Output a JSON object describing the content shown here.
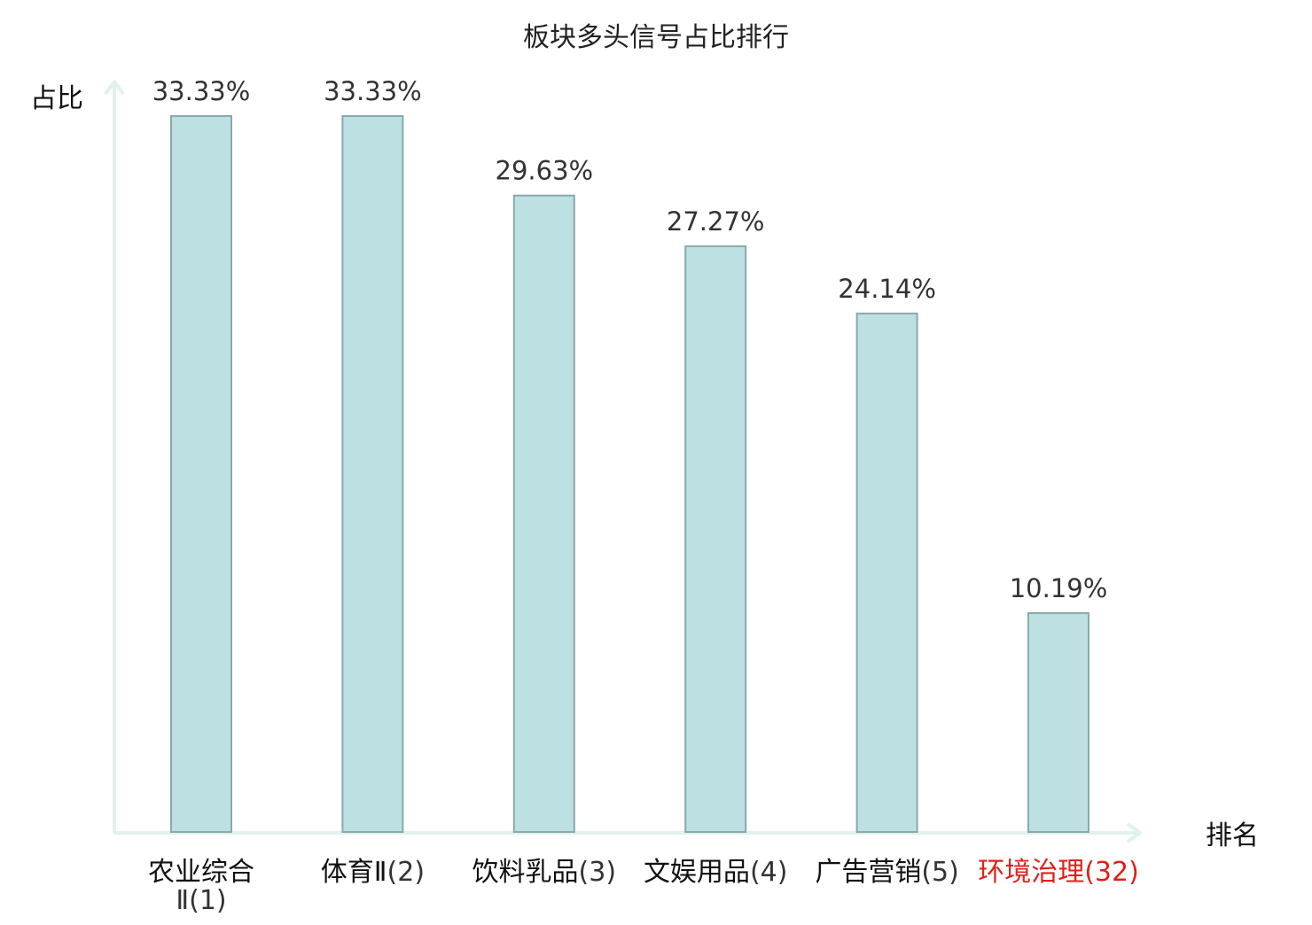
{
  "chart_data": {
    "type": "bar",
    "title": "板块多头信号占比排行",
    "ylabel": "占比",
    "xlabel": "排名",
    "categories": [
      {
        "name": "农业综合Ⅱ",
        "rank": "(1)",
        "highlight": false
      },
      {
        "name": "体育Ⅱ",
        "rank": "(2)",
        "highlight": false
      },
      {
        "name": "饮料乳品",
        "rank": "(3)",
        "highlight": false
      },
      {
        "name": "文娱用品",
        "rank": "(4)",
        "highlight": false
      },
      {
        "name": "广告营销",
        "rank": "(5)",
        "highlight": false
      },
      {
        "name": "环境治理",
        "rank": "(32)",
        "highlight": true
      }
    ],
    "values": [
      33.33,
      33.33,
      29.63,
      27.27,
      24.14,
      10.19
    ],
    "value_labels": [
      "33.33%",
      "33.33%",
      "29.63%",
      "27.27%",
      "24.14%",
      "10.19%"
    ],
    "ylim": [
      0,
      33.33
    ],
    "grid": false,
    "colors": {
      "bar_fill": "#bde0e3",
      "bar_stroke": "#8aa9ab",
      "axis": "#e0f1ee",
      "text": "#333333",
      "title": "#222222",
      "highlight": "#e0201b"
    }
  }
}
